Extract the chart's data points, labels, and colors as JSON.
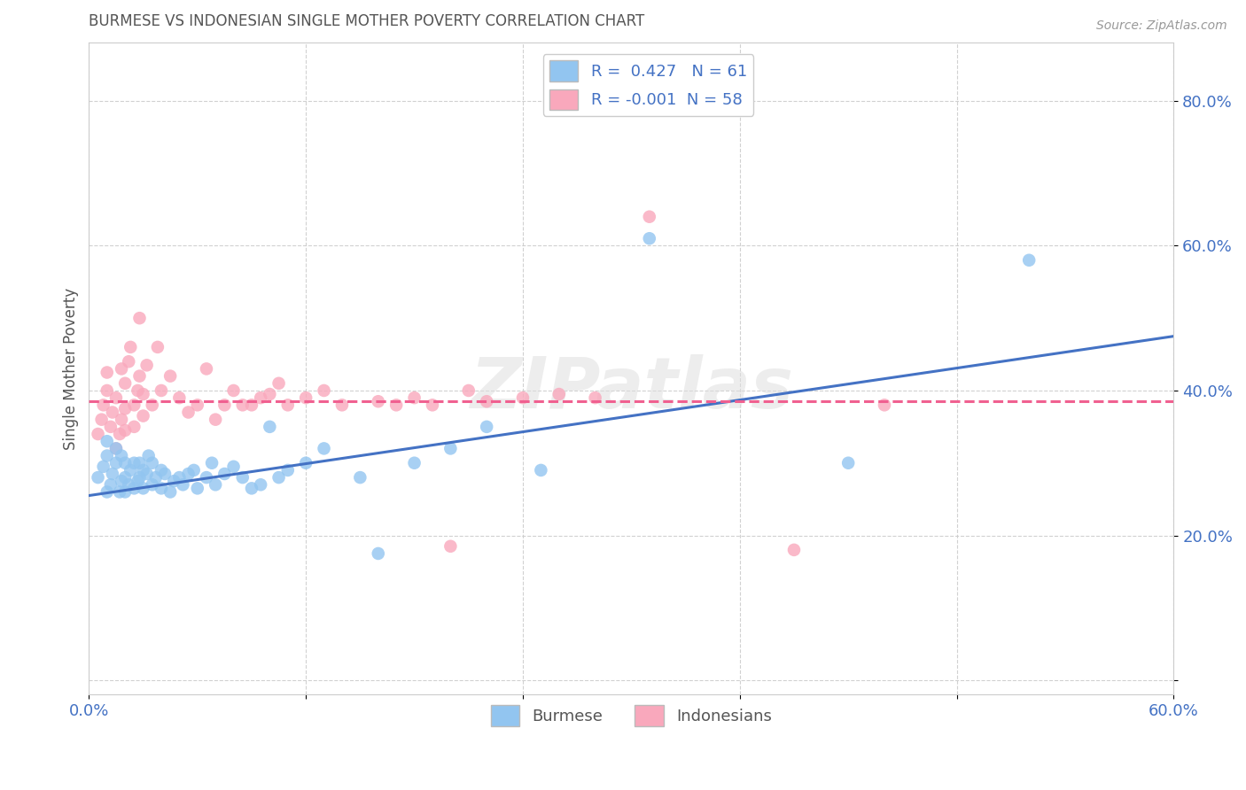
{
  "title": "BURMESE VS INDONESIAN SINGLE MOTHER POVERTY CORRELATION CHART",
  "source": "Source: ZipAtlas.com",
  "ylabel": "Single Mother Poverty",
  "xlim": [
    0.0,
    0.6
  ],
  "ylim": [
    -0.02,
    0.88
  ],
  "yticks": [
    0.0,
    0.2,
    0.4,
    0.6,
    0.8
  ],
  "ytick_labels": [
    "",
    "20.0%",
    "40.0%",
    "60.0%",
    "80.0%"
  ],
  "xticks": [
    0.0,
    0.12,
    0.24,
    0.36,
    0.48,
    0.6
  ],
  "burmese_color": "#92C5F0",
  "indonesian_color": "#F9A8BC",
  "burmese_line_color": "#4472C4",
  "indonesian_line_color": "#F06090",
  "R_burmese": 0.427,
  "N_burmese": 61,
  "R_indonesian": -0.001,
  "N_indonesian": 58,
  "background_color": "#FFFFFF",
  "watermark": "ZIPatlas",
  "legend_label_burmese": "Burmese",
  "legend_label_indonesian": "Indonesians",
  "burmese_line_x0": 0.0,
  "burmese_line_y0": 0.255,
  "burmese_line_x1": 0.6,
  "burmese_line_y1": 0.475,
  "indonesian_line_x0": 0.0,
  "indonesian_line_y0": 0.385,
  "indonesian_line_x1": 0.6,
  "indonesian_line_y1": 0.385,
  "burmese_scatter_x": [
    0.005,
    0.008,
    0.01,
    0.01,
    0.01,
    0.012,
    0.013,
    0.015,
    0.015,
    0.017,
    0.018,
    0.018,
    0.02,
    0.02,
    0.02,
    0.022,
    0.023,
    0.025,
    0.025,
    0.027,
    0.028,
    0.028,
    0.03,
    0.03,
    0.032,
    0.033,
    0.035,
    0.035,
    0.037,
    0.04,
    0.04,
    0.042,
    0.045,
    0.047,
    0.05,
    0.052,
    0.055,
    0.058,
    0.06,
    0.065,
    0.068,
    0.07,
    0.075,
    0.08,
    0.085,
    0.09,
    0.095,
    0.1,
    0.105,
    0.11,
    0.12,
    0.13,
    0.15,
    0.16,
    0.18,
    0.2,
    0.22,
    0.25,
    0.31,
    0.42,
    0.52
  ],
  "burmese_scatter_y": [
    0.28,
    0.295,
    0.26,
    0.31,
    0.33,
    0.27,
    0.285,
    0.3,
    0.32,
    0.26,
    0.275,
    0.31,
    0.26,
    0.28,
    0.3,
    0.27,
    0.29,
    0.265,
    0.3,
    0.275,
    0.28,
    0.3,
    0.265,
    0.29,
    0.285,
    0.31,
    0.27,
    0.3,
    0.28,
    0.265,
    0.29,
    0.285,
    0.26,
    0.275,
    0.28,
    0.27,
    0.285,
    0.29,
    0.265,
    0.28,
    0.3,
    0.27,
    0.285,
    0.295,
    0.28,
    0.265,
    0.27,
    0.35,
    0.28,
    0.29,
    0.3,
    0.32,
    0.28,
    0.175,
    0.3,
    0.32,
    0.35,
    0.29,
    0.61,
    0.3,
    0.58
  ],
  "indonesian_scatter_x": [
    0.005,
    0.007,
    0.008,
    0.01,
    0.01,
    0.012,
    0.013,
    0.015,
    0.015,
    0.017,
    0.018,
    0.018,
    0.02,
    0.02,
    0.02,
    0.022,
    0.023,
    0.025,
    0.025,
    0.027,
    0.028,
    0.028,
    0.03,
    0.03,
    0.032,
    0.035,
    0.038,
    0.04,
    0.045,
    0.05,
    0.055,
    0.06,
    0.065,
    0.07,
    0.075,
    0.08,
    0.085,
    0.09,
    0.095,
    0.1,
    0.105,
    0.11,
    0.12,
    0.13,
    0.14,
    0.16,
    0.17,
    0.18,
    0.19,
    0.2,
    0.21,
    0.22,
    0.24,
    0.26,
    0.28,
    0.31,
    0.39,
    0.44
  ],
  "indonesian_scatter_y": [
    0.34,
    0.36,
    0.38,
    0.4,
    0.425,
    0.35,
    0.37,
    0.39,
    0.32,
    0.34,
    0.36,
    0.43,
    0.345,
    0.375,
    0.41,
    0.44,
    0.46,
    0.35,
    0.38,
    0.4,
    0.42,
    0.5,
    0.365,
    0.395,
    0.435,
    0.38,
    0.46,
    0.4,
    0.42,
    0.39,
    0.37,
    0.38,
    0.43,
    0.36,
    0.38,
    0.4,
    0.38,
    0.38,
    0.39,
    0.395,
    0.41,
    0.38,
    0.39,
    0.4,
    0.38,
    0.385,
    0.38,
    0.39,
    0.38,
    0.185,
    0.4,
    0.385,
    0.39,
    0.395,
    0.39,
    0.64,
    0.18,
    0.38
  ]
}
